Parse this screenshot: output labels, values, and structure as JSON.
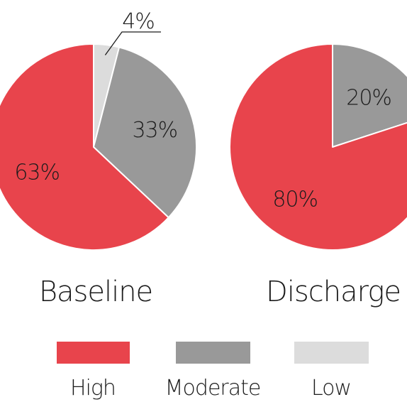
{
  "chart_data": [
    {
      "type": "pie",
      "title": "Baseline",
      "slices": [
        {
          "category": "Low",
          "value": 4,
          "label": "4%",
          "color": "#dcdcdc"
        },
        {
          "category": "Moderate",
          "value": 33,
          "label": "33%",
          "color": "#999999"
        },
        {
          "category": "High",
          "value": 63,
          "label": "63%",
          "color": "#e8444c"
        }
      ]
    },
    {
      "type": "pie",
      "title": "Discharge",
      "slices": [
        {
          "category": "Moderate",
          "value": 20,
          "label": "20%",
          "color": "#999999"
        },
        {
          "category": "High",
          "value": 80,
          "label": "80%",
          "color": "#e8444c"
        }
      ]
    }
  ],
  "legend": {
    "placement": "bottom",
    "items": [
      {
        "label": "High",
        "color": "#e8444c"
      },
      {
        "label": "Moderate",
        "color": "#999999"
      },
      {
        "label": "Low",
        "color": "#dcdcdc"
      }
    ]
  }
}
